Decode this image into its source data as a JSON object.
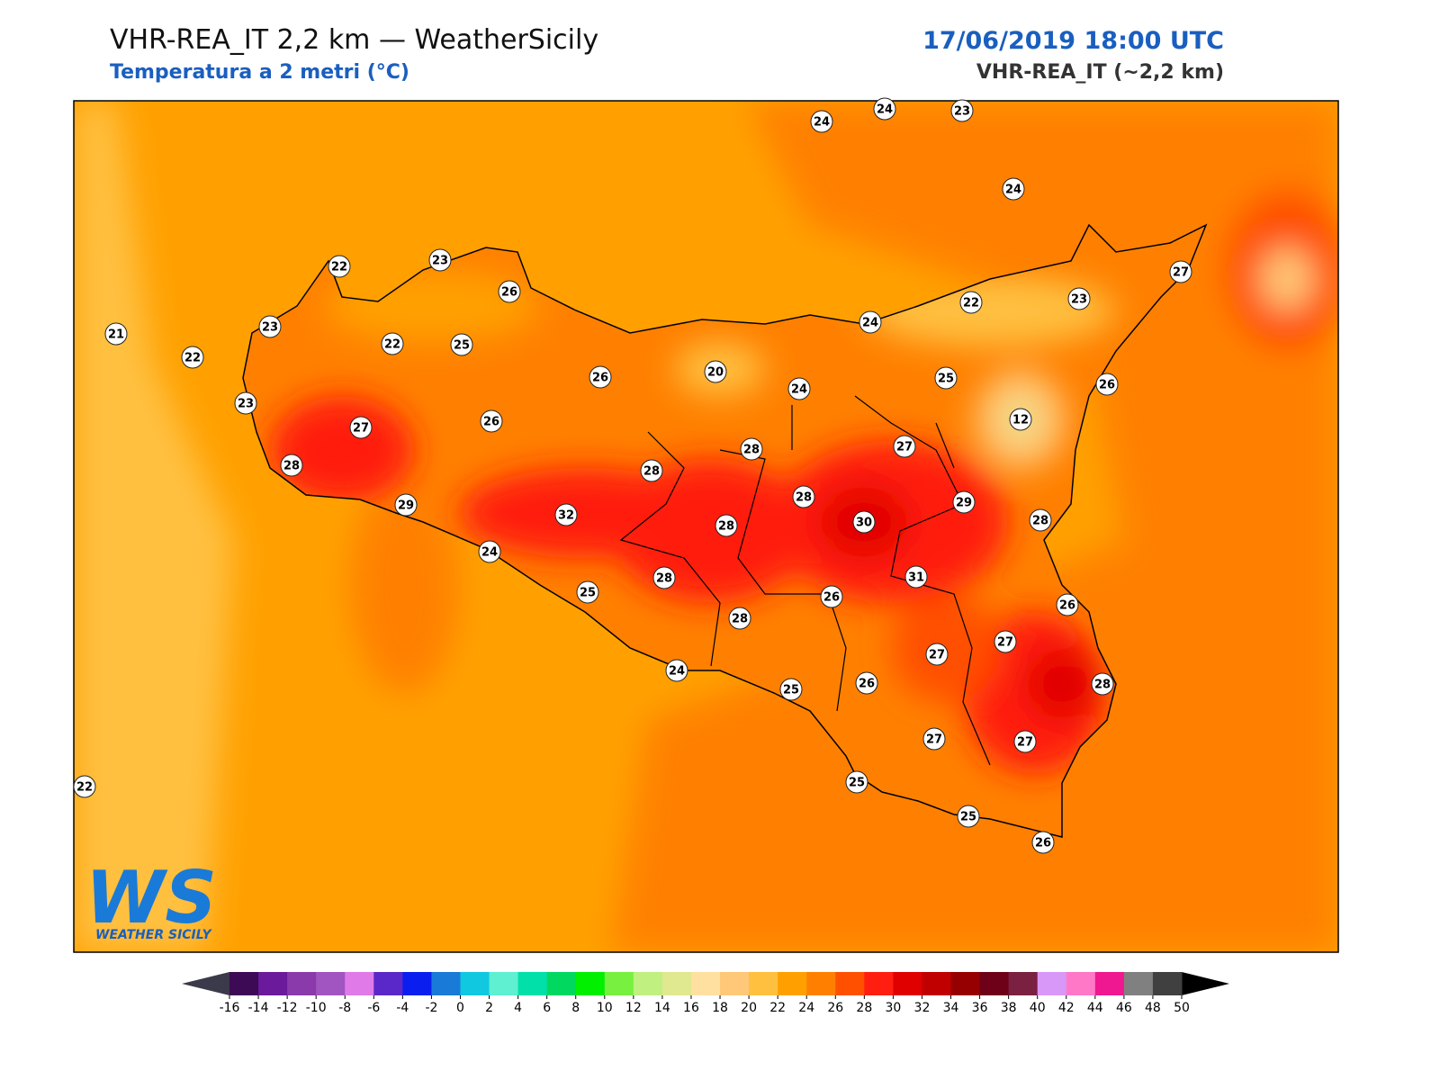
{
  "header": {
    "title": "VHR-REA_IT 2,2 km — WeatherSicily",
    "subtitle": "Temperatura a 2 metri (°C)",
    "date": "17/06/2019 18:00 UTC",
    "model": "VHR-REA_IT (~2,2 km)"
  },
  "stations": [
    24,
    24,
    23,
    24,
    22,
    23,
    26,
    27,
    21,
    23,
    22,
    22,
    25,
    22,
    23,
    24,
    20,
    26,
    24,
    25,
    26,
    23,
    27,
    26,
    12,
    28,
    27,
    28,
    28,
    29,
    32,
    28,
    30,
    29,
    28,
    28,
    24,
    31,
    25,
    28,
    26,
    26,
    28,
    27,
    27,
    24,
    25,
    26,
    28,
    27,
    27,
    22,
    25,
    25,
    26
  ],
  "logo": {
    "letters": "WS",
    "name": "WEATHER SICILY"
  },
  "colorbar": {
    "ticks": [
      -16,
      -14,
      -12,
      -10,
      -8,
      -6,
      -4,
      -2,
      0,
      2,
      4,
      6,
      8,
      10,
      12,
      14,
      16,
      18,
      20,
      22,
      24,
      26,
      28,
      30,
      32,
      34,
      36,
      38,
      40,
      42,
      44,
      46,
      48,
      50
    ],
    "colors": [
      "#3d0a55",
      "#6a1a9a",
      "#8a3aaa",
      "#a055c0",
      "#e07ae8",
      "#5a28c8",
      "#0a1ef0",
      "#1a7ad8",
      "#10c8e0",
      "#5ef0d0",
      "#00e0a8",
      "#00d860",
      "#00f000",
      "#78f040",
      "#c0f080",
      "#e0e890",
      "#ffe0a0",
      "#ffc878",
      "#ffc040",
      "#ffa000",
      "#ff8000",
      "#ff5000",
      "#ff1e10",
      "#e00000",
      "#c00000",
      "#960000",
      "#6e0018",
      "#7a2040",
      "#d898f8",
      "#ff78c8",
      "#f01890",
      "#808080",
      "#404040"
    ],
    "under_color": "#3a3a4a",
    "over_color": "#000000"
  }
}
